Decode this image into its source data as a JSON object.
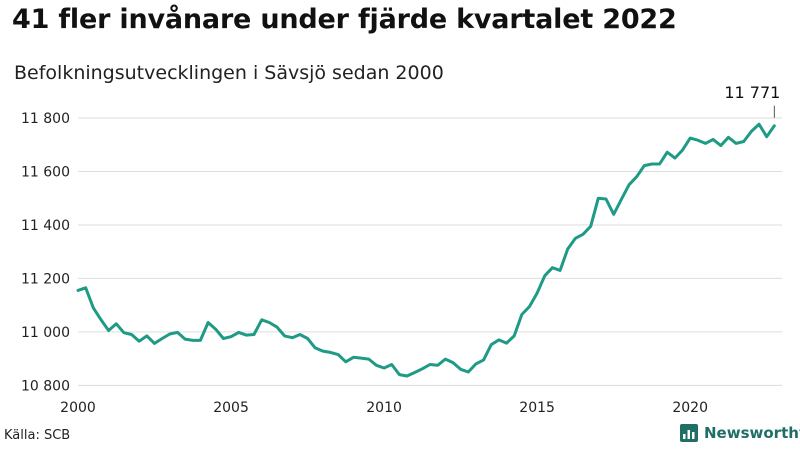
{
  "title": "41 fler invånare under fjärde kvartalet 2022",
  "subtitle": "Befolkningsutvecklingen i Sävsjö sedan 2000",
  "source": "Källa: SCB",
  "brand": "Newsworthy",
  "colors": {
    "line": "#1f9a85",
    "grid": "#dddddd",
    "brand": "#1f6f66"
  },
  "chart_data": {
    "type": "line",
    "x_tick_labels": [
      "2000",
      "2005",
      "2010",
      "2015",
      "2020"
    ],
    "y_tick_labels": [
      "10 800",
      "11 000",
      "11 200",
      "11 400",
      "11 600",
      "11 800"
    ],
    "y_ticks": [
      10800,
      11000,
      11200,
      11400,
      11600,
      11800
    ],
    "x_ticks": [
      2000,
      2005,
      2010,
      2015,
      2020
    ],
    "xlim": [
      2000,
      2023
    ],
    "ylim": [
      10790,
      11830
    ],
    "grid": "horizontal",
    "last_value_label": "11 771",
    "series": [
      {
        "x": [
          2000.0,
          2000.25,
          2000.5,
          2000.75,
          2001.0,
          2001.25,
          2001.5,
          2001.75,
          2002.0,
          2002.25,
          2002.5,
          2002.75,
          2003.0,
          2003.25,
          2003.5,
          2003.75,
          2004.0,
          2004.25,
          2004.5,
          2004.75,
          2005.0,
          2005.25,
          2005.5,
          2005.75,
          2006.0,
          2006.25,
          2006.5,
          2006.75,
          2007.0,
          2007.25,
          2007.5,
          2007.75,
          2008.0,
          2008.25,
          2008.5,
          2008.75,
          2009.0,
          2009.25,
          2009.5,
          2009.75,
          2010.0,
          2010.25,
          2010.5,
          2010.75,
          2011.0,
          2011.25,
          2011.5,
          2011.75,
          2012.0,
          2012.25,
          2012.5,
          2012.75,
          2013.0,
          2013.25,
          2013.5,
          2013.75,
          2014.0,
          2014.25,
          2014.5,
          2014.75,
          2015.0,
          2015.25,
          2015.5,
          2015.75,
          2016.0,
          2016.25,
          2016.5,
          2016.75,
          2017.0,
          2017.25,
          2017.5,
          2017.75,
          2018.0,
          2018.25,
          2018.5,
          2018.75,
          2019.0,
          2019.25,
          2019.5,
          2019.75,
          2020.0,
          2020.25,
          2020.5,
          2020.75,
          2021.0,
          2021.25,
          2021.5,
          2021.75,
          2022.0,
          2022.25,
          2022.5,
          2022.75
        ],
        "y": [
          11155,
          11165,
          11090,
          11045,
          11005,
          11030,
          10997,
          10990,
          10965,
          10985,
          10957,
          10975,
          10992,
          10998,
          10973,
          10968,
          10968,
          11035,
          11010,
          10975,
          10982,
          10998,
          10988,
          10990,
          11045,
          11035,
          11018,
          10985,
          10978,
          10990,
          10975,
          10940,
          10928,
          10923,
          10915,
          10888,
          10905,
          10902,
          10898,
          10875,
          10865,
          10878,
          10840,
          10835,
          10848,
          10862,
          10878,
          10875,
          10898,
          10885,
          10860,
          10850,
          10880,
          10895,
          10952,
          10970,
          10958,
          10985,
          11065,
          11095,
          11145,
          11210,
          11240,
          11230,
          11310,
          11350,
          11365,
          11395,
          11500,
          11497,
          11440,
          11495,
          11550,
          11580,
          11622,
          11628,
          11628,
          11672,
          11650,
          11680,
          11725,
          11717,
          11705,
          11720,
          11697,
          11728,
          11705,
          11712,
          11750,
          11777,
          11730,
          11771
        ]
      }
    ]
  }
}
